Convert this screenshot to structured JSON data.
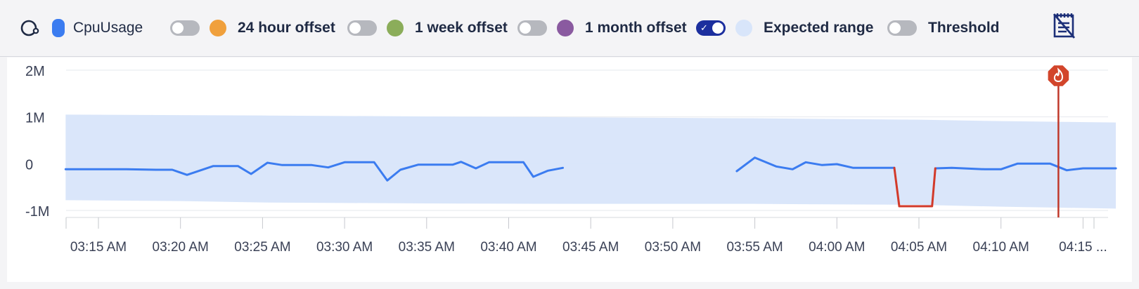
{
  "legend": {
    "primary": {
      "label": "CpuUsage",
      "color": "#3b7cf0"
    },
    "items": [
      {
        "label": "24 hour offset",
        "on": false,
        "color": "#f0a03c"
      },
      {
        "label": "1 week offset",
        "on": false,
        "color": "#8bad5a"
      },
      {
        "label": "1 month offset",
        "on": false,
        "color": "#8a5aa0"
      },
      {
        "label": "Expected range",
        "on": true,
        "color": "#d8e5fa"
      },
      {
        "label": "Threshold",
        "on": false,
        "color": null
      }
    ],
    "icons": {
      "refresh": "refresh-icon",
      "report": "no-report-icon"
    }
  },
  "chart_data": {
    "type": "line",
    "ylim": [
      -1.15,
      2.15
    ],
    "y_ticks": [
      {
        "value": 2,
        "label": "2M"
      },
      {
        "value": 1,
        "label": "1M"
      },
      {
        "value": 0,
        "label": "0"
      },
      {
        "value": -1,
        "label": "-1M"
      }
    ],
    "x_domain": [
      -9,
      131
    ],
    "x_ticks": [
      {
        "value": 0,
        "label": "03:15 AM"
      },
      {
        "value": 5,
        "label": "03:20 AM"
      },
      {
        "value": 10,
        "label": "03:25 AM"
      },
      {
        "value": 15,
        "label": "03:30 AM"
      },
      {
        "value": 20,
        "label": "03:35 AM"
      },
      {
        "value": 25,
        "label": "03:40 AM"
      },
      {
        "value": 30,
        "label": "03:45 AM"
      },
      {
        "value": 35,
        "label": "03:50 AM"
      },
      {
        "value": 40,
        "label": "03:55 AM"
      },
      {
        "value": 45,
        "label": "04:00 AM"
      },
      {
        "value": 50,
        "label": "04:05 AM"
      },
      {
        "value": 55,
        "label": "04:10 AM"
      },
      {
        "value": 60,
        "label": "04:15 ..."
      }
    ],
    "expected_range": {
      "color": "#d8e5fa",
      "upper": [
        [
          -2,
          1.05
        ],
        [
          10,
          1.03
        ],
        [
          20,
          1.01
        ],
        [
          30,
          0.99
        ],
        [
          40,
          0.97
        ],
        [
          50,
          0.94
        ],
        [
          55,
          0.91
        ],
        [
          62,
          0.88
        ]
      ],
      "lower": [
        [
          -2,
          -0.78
        ],
        [
          5,
          -0.8
        ],
        [
          10,
          -0.83
        ],
        [
          20,
          -0.85
        ],
        [
          30,
          -0.86
        ],
        [
          40,
          -0.86
        ],
        [
          50,
          -0.88
        ],
        [
          55,
          -0.92
        ],
        [
          62,
          -0.96
        ]
      ]
    },
    "series": [
      {
        "name": "CpuUsage",
        "color": "#3b7cf0",
        "segments": [
          [
            [
              -2,
              -0.12
            ],
            [
              1.7,
              -0.12
            ],
            [
              3.5,
              -0.13
            ],
            [
              4.5,
              -0.13
            ],
            [
              5.4,
              -0.24
            ],
            [
              7.0,
              -0.05
            ],
            [
              8.5,
              -0.05
            ],
            [
              9.3,
              -0.22
            ],
            [
              10.3,
              0.02
            ],
            [
              11.2,
              -0.03
            ],
            [
              13.0,
              -0.03
            ],
            [
              14.0,
              -0.08
            ],
            [
              15.0,
              0.03
            ],
            [
              16.8,
              0.03
            ],
            [
              17.6,
              -0.36
            ],
            [
              18.4,
              -0.13
            ],
            [
              19.5,
              -0.02
            ],
            [
              21.6,
              -0.02
            ],
            [
              22.1,
              0.04
            ],
            [
              23.0,
              -0.1
            ],
            [
              23.8,
              0.03
            ],
            [
              25.9,
              0.03
            ],
            [
              26.5,
              -0.28
            ],
            [
              27.4,
              -0.15
            ],
            [
              28.3,
              -0.09
            ]
          ],
          [
            [
              38.9,
              -0.16
            ],
            [
              40.0,
              0.13
            ],
            [
              41.3,
              -0.06
            ],
            [
              42.3,
              -0.12
            ],
            [
              43.1,
              0.03
            ],
            [
              44.1,
              -0.03
            ],
            [
              45.0,
              -0.01
            ],
            [
              46.0,
              -0.09
            ],
            [
              48.5,
              -0.09
            ]
          ],
          [
            [
              51.0,
              -0.1
            ],
            [
              52.0,
              -0.09
            ],
            [
              54.0,
              -0.12
            ],
            [
              55.0,
              -0.12
            ],
            [
              56.0,
              0.0
            ],
            [
              58.0,
              0.0
            ],
            [
              59.0,
              -0.14
            ],
            [
              60.0,
              -0.1
            ],
            [
              62.0,
              -0.1
            ]
          ]
        ]
      },
      {
        "name": "anomaly",
        "color": "#d23a2a",
        "segments": [
          [
            [
              48.5,
              -0.09
            ],
            [
              48.8,
              -0.91
            ],
            [
              50.8,
              -0.91
            ],
            [
              51.0,
              -0.1
            ]
          ]
        ]
      }
    ],
    "marker_x": 58.5,
    "marker_icon": "fire-icon",
    "grid": true
  }
}
